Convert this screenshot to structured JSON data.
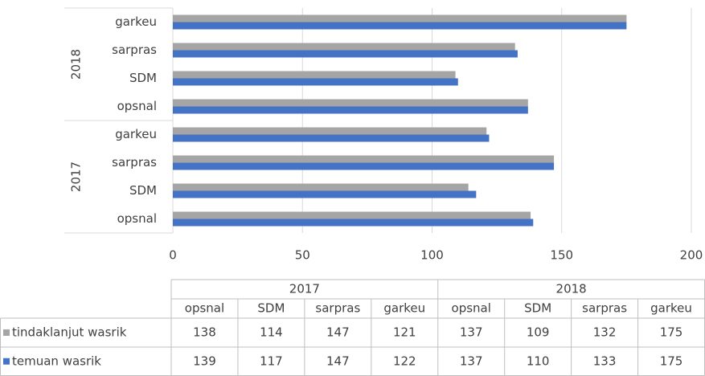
{
  "chart_data": {
    "type": "bar",
    "orientation": "horizontal",
    "groups": [
      {
        "name": "2017",
        "categories": [
          "opsnal",
          "SDM",
          "sarpras",
          "garkeu"
        ]
      },
      {
        "name": "2018",
        "categories": [
          "opsnal",
          "SDM",
          "sarpras",
          "garkeu"
        ]
      }
    ],
    "series": [
      {
        "name": "tindaklanjut wasrik",
        "color": "#a5a5a5",
        "values": [
          138,
          114,
          147,
          121,
          137,
          109,
          132,
          175
        ]
      },
      {
        "name": "temuan wasrik",
        "color": "#4472c4",
        "values": [
          139,
          117,
          147,
          122,
          137,
          110,
          133,
          175
        ]
      }
    ],
    "xlim": [
      0,
      200
    ],
    "xticks": [
      0,
      50,
      100,
      150,
      200
    ],
    "grid": true
  }
}
